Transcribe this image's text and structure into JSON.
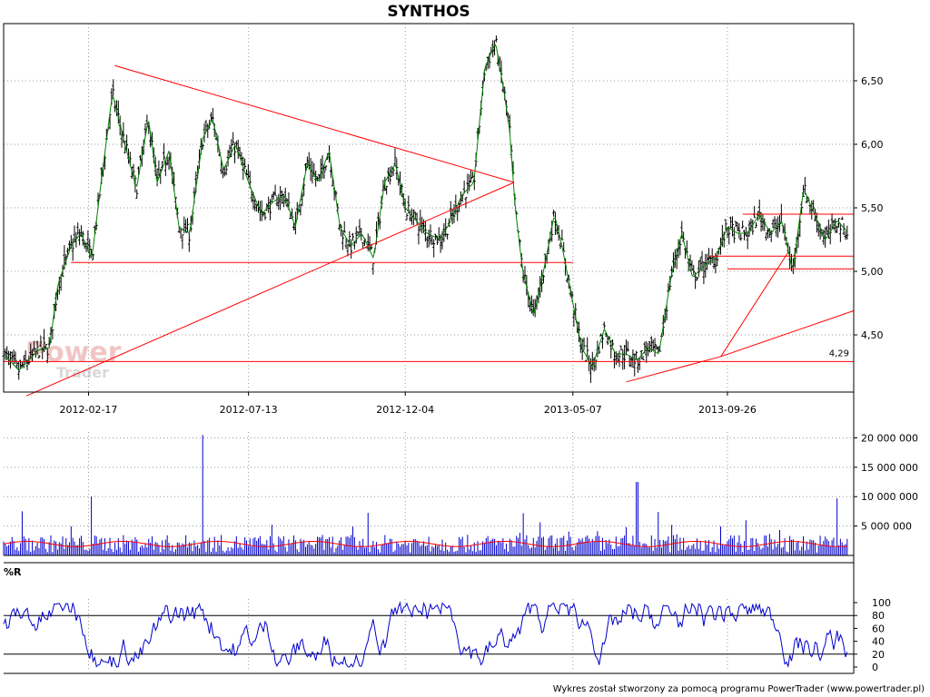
{
  "chart_data": [
    {
      "type": "line",
      "panel": "price",
      "title": "SYNTHOS",
      "style": "ohlc-bars",
      "x_tick_labels": [
        "2012-02-17",
        "2012-07-13",
        "2012-12-04",
        "2013-05-07",
        "2013-09-26"
      ],
      "x_range": [
        "2011-12-01",
        "2014-01-20"
      ],
      "y_ticks": [
        4.5,
        5.0,
        5.5,
        6.0,
        6.5
      ],
      "y_tick_labels": [
        "4,50",
        "5,00",
        "5,50",
        "6,00",
        "6,50"
      ],
      "ylim": [
        4.05,
        6.95
      ],
      "grid": true,
      "series": [
        {
          "x": [
            "2011-12-01",
            "2011-12-15",
            "2012-01-02",
            "2012-01-12",
            "2012-01-20",
            "2012-02-01",
            "2012-02-10",
            "2012-02-20",
            "2012-03-01",
            "2012-03-10",
            "2012-03-20",
            "2012-04-01",
            "2012-04-12",
            "2012-04-20",
            "2012-05-01",
            "2012-05-10",
            "2012-05-20",
            "2012-06-01",
            "2012-06-10",
            "2012-06-20",
            "2012-07-01",
            "2012-07-13",
            "2012-07-25",
            "2012-08-05",
            "2012-08-15",
            "2012-08-25",
            "2012-09-05",
            "2012-09-15",
            "2012-09-25",
            "2012-10-05",
            "2012-10-15",
            "2012-10-25",
            "2012-11-05",
            "2012-11-15",
            "2012-11-25",
            "2012-12-04",
            "2012-12-14",
            "2012-12-24",
            "2013-01-05",
            "2013-01-15",
            "2013-01-25",
            "2013-02-05",
            "2013-02-15",
            "2013-02-25",
            "2013-03-05",
            "2013-03-10",
            "2013-03-15",
            "2013-03-22",
            "2013-04-01",
            "2013-04-10",
            "2013-04-20",
            "2013-04-27",
            "2013-05-07",
            "2013-05-15",
            "2013-05-25",
            "2013-06-05",
            "2013-06-15",
            "2013-06-25",
            "2013-07-05",
            "2013-07-15",
            "2013-07-25",
            "2013-08-05",
            "2013-08-15",
            "2013-08-25",
            "2013-09-05",
            "2013-09-15",
            "2013-09-26",
            "2013-10-05",
            "2013-10-15",
            "2013-10-25",
            "2013-11-05",
            "2013-11-15",
            "2013-11-25",
            "2013-12-05",
            "2013-12-15",
            "2013-12-25",
            "2014-01-05",
            "2014-01-15"
          ],
          "close": [
            4.35,
            4.22,
            4.38,
            4.4,
            4.9,
            5.2,
            5.3,
            5.1,
            5.8,
            6.4,
            6.05,
            5.65,
            6.2,
            5.7,
            5.95,
            5.35,
            5.3,
            6.05,
            6.2,
            5.8,
            6.0,
            5.7,
            5.45,
            5.55,
            5.6,
            5.35,
            5.85,
            5.7,
            5.95,
            5.35,
            5.2,
            5.3,
            5.1,
            5.7,
            5.85,
            5.5,
            5.4,
            5.3,
            5.25,
            5.4,
            5.6,
            5.7,
            6.6,
            6.8,
            6.4,
            6.1,
            5.5,
            5.0,
            4.65,
            5.0,
            5.45,
            5.2,
            4.75,
            4.4,
            4.25,
            4.55,
            4.35,
            4.35,
            4.3,
            4.4,
            4.35,
            4.95,
            5.3,
            4.95,
            5.05,
            5.1,
            5.35,
            5.3,
            5.3,
            5.45,
            5.3,
            5.4,
            5.0,
            5.65,
            5.45,
            5.25,
            5.4,
            5.3
          ]
        }
      ],
      "annotations": [
        {
          "type": "line",
          "from": [
            "2012-03-12",
            6.62
          ],
          "to": [
            "2013-03-14",
            5.7
          ]
        },
        {
          "type": "line",
          "from": [
            "2011-12-22",
            4.02
          ],
          "to": [
            "2013-03-14",
            5.7
          ]
        },
        {
          "type": "line",
          "from": [
            "2012-02-01",
            5.07
          ],
          "to": [
            "2013-05-07",
            5.07
          ]
        },
        {
          "type": "line",
          "from": [
            "2011-12-01",
            4.29
          ],
          "to": [
            "2014-01-20",
            4.29
          ],
          "label": "4,29"
        },
        {
          "type": "line",
          "from": [
            "2013-06-25",
            4.13
          ],
          "to": [
            "2013-09-20",
            4.33
          ]
        },
        {
          "type": "line",
          "from": [
            "2013-09-20",
            4.33
          ],
          "to": [
            "2014-01-20",
            4.69
          ]
        },
        {
          "type": "line",
          "from": [
            "2013-09-20",
            4.33
          ],
          "to": [
            "2013-11-20",
            5.14
          ]
        },
        {
          "type": "line",
          "from": [
            "2013-09-10",
            5.12
          ],
          "to": [
            "2014-01-20",
            5.12
          ]
        },
        {
          "type": "line",
          "from": [
            "2013-09-26",
            5.02
          ],
          "to": [
            "2014-01-20",
            5.02
          ]
        },
        {
          "type": "line",
          "from": [
            "2013-10-10",
            5.45
          ],
          "to": [
            "2014-01-20",
            5.45
          ]
        }
      ]
    },
    {
      "type": "bar",
      "panel": "volume",
      "y_ticks": [
        5000000,
        10000000,
        15000000,
        20000000
      ],
      "y_tick_labels": [
        "5 000 000",
        "10 000 000",
        "15 000 000",
        "20 000 000"
      ],
      "ylim": [
        0,
        21000000
      ],
      "grid": true,
      "spikes": [
        {
          "x": "2012-02-20",
          "value": 10000000
        },
        {
          "x": "2012-06-01",
          "value": 20500000
        },
        {
          "x": "2013-07-05",
          "value": 12500000
        },
        {
          "x": "2014-01-05",
          "value": 9700000
        }
      ],
      "typical_range": [
        1000000,
        3500000
      ],
      "moving_average_level": [
        1500000,
        3500000
      ]
    },
    {
      "type": "line",
      "panel": "indicator",
      "title": "%R",
      "y_ticks": [
        0,
        20,
        40,
        60,
        80,
        100
      ],
      "y_tick_labels": [
        "0",
        "20",
        "40",
        "60",
        "80",
        "100"
      ],
      "ylim": [
        0,
        100
      ],
      "reference_lines": [
        20,
        80
      ]
    }
  ],
  "watermark": {
    "line1": "Power",
    "line2": "Trader"
  },
  "footer": "Wykres został stworzony za pomocą programu PowerTrader (www.powertrader.pl)",
  "colors": {
    "price_up": "#008000",
    "price_bar": "#000000",
    "trendline": "#ff0000",
    "volume": "#0000cc",
    "volume_ma": "#ff0000",
    "indicator": "#0000cc",
    "grid": "#999999"
  }
}
